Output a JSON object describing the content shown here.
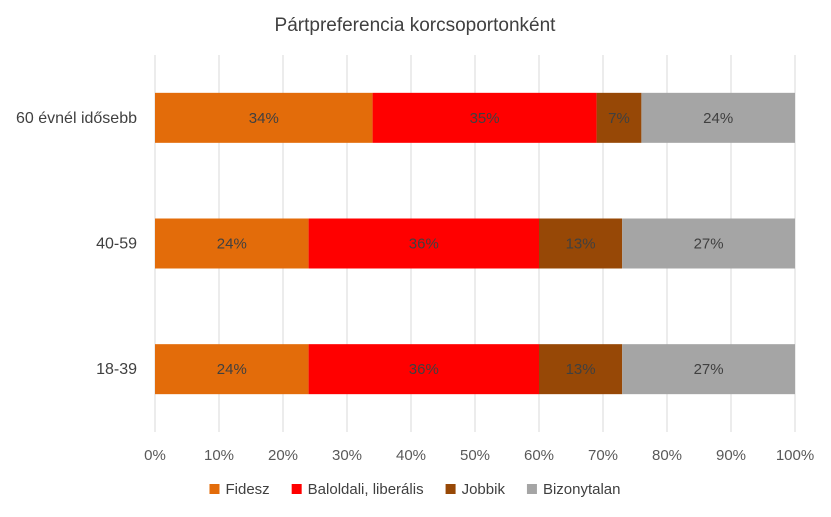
{
  "chart_data": {
    "type": "bar",
    "orientation": "horizontal",
    "stacked": "percent",
    "title": "Pártpreferencia korcsoportonként",
    "categories": [
      "60 évnél idősebb",
      "40-59",
      "18-39"
    ],
    "series": [
      {
        "name": "Fidesz",
        "color": "#e36c0a",
        "values": [
          34,
          24,
          24
        ],
        "labels": [
          "34%",
          "24%",
          "24%"
        ]
      },
      {
        "name": "Baloldali, liberális",
        "color": "#ff0000",
        "values": [
          35,
          36,
          36
        ],
        "labels": [
          "35%",
          "36%",
          "36%"
        ]
      },
      {
        "name": "Jobbik",
        "color": "#974806",
        "values": [
          7,
          13,
          13
        ],
        "labels": [
          "7%",
          "13%",
          "13%"
        ]
      },
      {
        "name": "Bizonytalan",
        "color": "#a5a5a5",
        "values": [
          24,
          27,
          27
        ],
        "labels": [
          "24%",
          "27%",
          "27%"
        ]
      }
    ],
    "x_ticks": [
      "0%",
      "10%",
      "20%",
      "30%",
      "40%",
      "50%",
      "60%",
      "70%",
      "80%",
      "90%",
      "100%"
    ],
    "xlim": [
      0,
      100
    ],
    "grid": true,
    "legend_position": "bottom"
  }
}
